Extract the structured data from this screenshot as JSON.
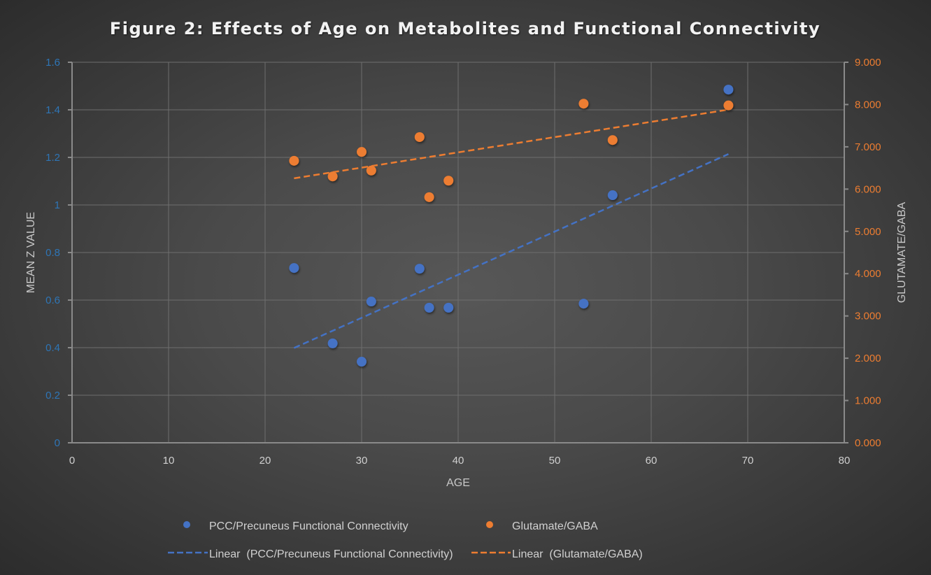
{
  "chart_data": {
    "type": "scatter",
    "title": "Figure 2: Effects of Age on Metabolites and Functional Connectivity",
    "xlabel": "AGE",
    "ylabel": "MEAN Z VALUE",
    "y2label": "GLUTAMATE/GABA",
    "xlim": [
      0,
      80
    ],
    "ylim": [
      0,
      1.6
    ],
    "y2lim": [
      0,
      9
    ],
    "xticks": [
      "0",
      "10",
      "20",
      "30",
      "40",
      "50",
      "60",
      "70",
      "80"
    ],
    "yticks": [
      "0",
      "0.2",
      "0.4",
      "0.6",
      "0.8",
      "1",
      "1.2",
      "1.4",
      "1.6"
    ],
    "y2ticks": [
      "0.000",
      "1.000",
      "2.000",
      "3.000",
      "4.000",
      "5.000",
      "6.000",
      "7.000",
      "8.000",
      "9.000"
    ],
    "grid": true,
    "legend_position": "bottom",
    "series": [
      {
        "name": "PCC/Precuneus Functional Connectivity",
        "axis": "left",
        "color": "#4472c4",
        "x": [
          23,
          27,
          30,
          31,
          36,
          37,
          39,
          53,
          56,
          68
        ],
        "y": [
          0.735,
          0.418,
          0.341,
          0.594,
          0.732,
          0.568,
          0.568,
          0.585,
          1.041,
          1.485
        ]
      },
      {
        "name": "Glutamate/GABA",
        "axis": "right",
        "color": "#ed7d31",
        "x": [
          23,
          27,
          30,
          31,
          36,
          37,
          39,
          53,
          56,
          68
        ],
        "y": [
          6.67,
          6.3,
          6.88,
          6.44,
          7.23,
          5.81,
          6.2,
          8.02,
          7.16,
          7.98
        ]
      }
    ],
    "trendlines": [
      {
        "name": "Linear  (PCC/Precuneus Functional Connectivity)",
        "series": 0,
        "type": "linear",
        "color": "#4472c4"
      },
      {
        "name": "Linear  (Glutamate/GABA)",
        "series": 1,
        "type": "linear",
        "color": "#ed7d31"
      }
    ]
  }
}
